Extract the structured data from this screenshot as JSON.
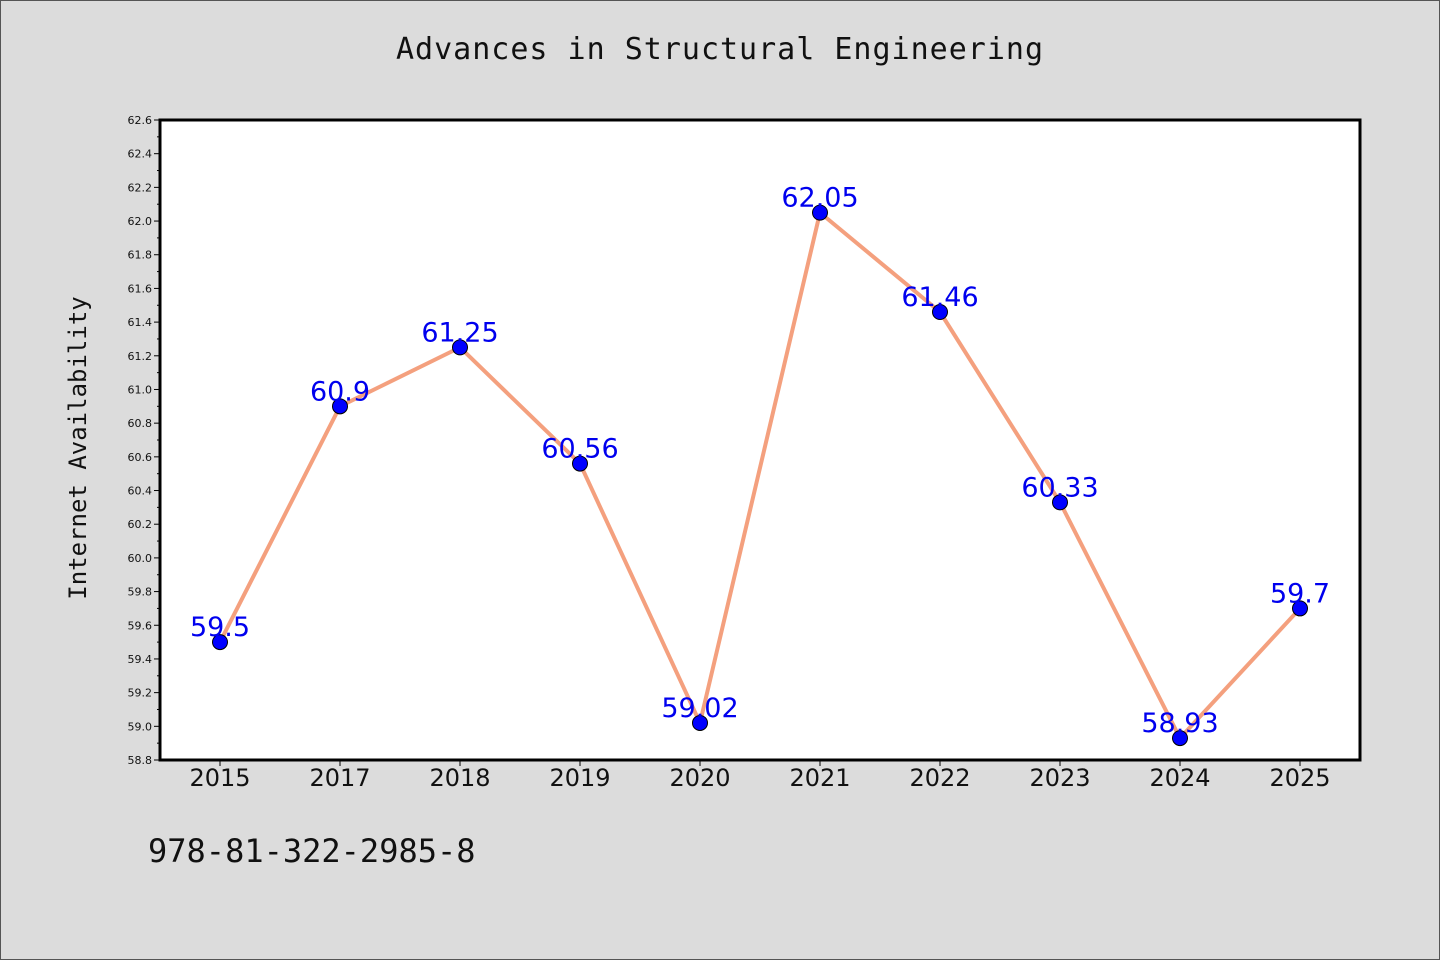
{
  "header": {
    "title": "Advances in Structural Engineering"
  },
  "footer": {
    "isbn": "978-81-322-2985-8"
  },
  "colors": {
    "line": "#f4a07e",
    "marker": "#0000ff",
    "data_label": "#0000ee",
    "background": "#dcdcdc",
    "plot_background": "#ffffff"
  },
  "chart_data": {
    "type": "line",
    "title": "Advances in Structural Engineering",
    "xlabel": "",
    "ylabel": "Internet Availability",
    "categories": [
      "2015",
      "2017",
      "2018",
      "2019",
      "2020",
      "2021",
      "2022",
      "2023",
      "2024",
      "2025"
    ],
    "series": [
      {
        "values": [
          59.5,
          60.9,
          61.25,
          60.56,
          59.02,
          62.05,
          61.46,
          60.33,
          58.93,
          59.7
        ],
        "data_labels": [
          "59.5",
          "60.9",
          "61.25",
          "60.56",
          "59.02",
          "62.05",
          "61.46",
          "60.33",
          "58.93",
          "59.7"
        ]
      }
    ],
    "ylim": [
      58.8,
      62.6
    ],
    "yticks": [
      "58.8",
      "59.0",
      "59.2",
      "59.4",
      "59.6",
      "59.8",
      "60.0",
      "60.2",
      "60.4",
      "60.6",
      "60.8",
      "61.0",
      "61.2",
      "61.4",
      "61.6",
      "61.8",
      "62.0",
      "62.2",
      "62.4",
      "62.6"
    ],
    "grid": false,
    "legend": "none"
  }
}
